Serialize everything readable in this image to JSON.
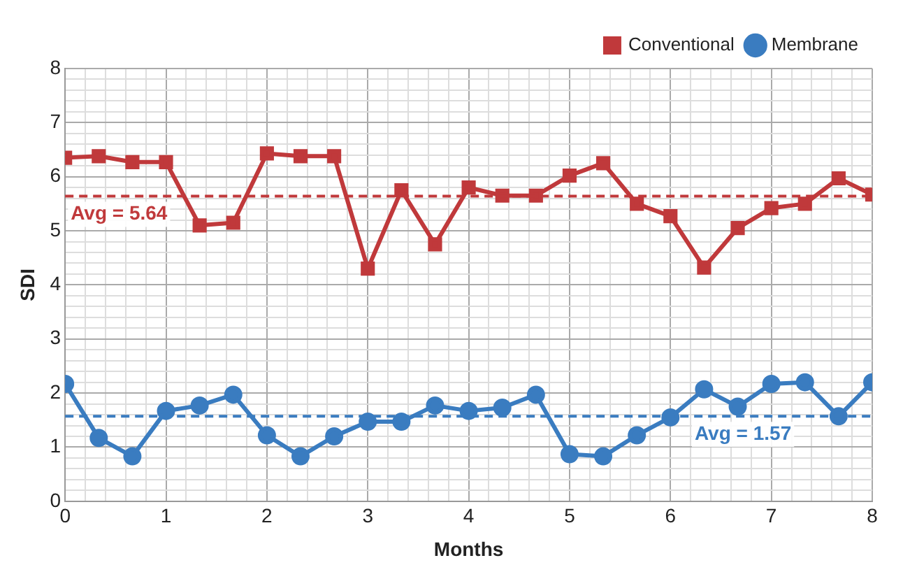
{
  "chart_data": {
    "type": "line",
    "xlabel": "Months",
    "ylabel": "SDI",
    "x": [
      0,
      0.3333,
      0.6667,
      1,
      1.3333,
      1.6667,
      2,
      2.3333,
      2.6667,
      3,
      3.3333,
      3.6667,
      4,
      4.3333,
      4.6667,
      5,
      5.3333,
      5.6667,
      6,
      6.3333,
      6.6667,
      7,
      7.3333,
      7.6667,
      8
    ],
    "series": [
      {
        "name": "Conventional",
        "color": "#c0393b",
        "marker": "square",
        "values": [
          6.35,
          6.38,
          6.27,
          6.27,
          5.1,
          5.15,
          6.43,
          6.38,
          6.38,
          4.3,
          5.75,
          4.75,
          5.8,
          5.65,
          5.65,
          6.02,
          6.25,
          5.5,
          5.27,
          4.32,
          5.05,
          5.42,
          5.5,
          5.97,
          5.67
        ]
      },
      {
        "name": "Membrane",
        "color": "#3a7cc0",
        "marker": "circle",
        "values": [
          2.17,
          1.17,
          0.83,
          1.67,
          1.77,
          1.97,
          1.22,
          0.83,
          1.2,
          1.47,
          1.47,
          1.77,
          1.67,
          1.73,
          1.97,
          0.87,
          0.83,
          1.22,
          1.55,
          2.07,
          1.75,
          2.17,
          2.2,
          1.57,
          2.2
        ]
      }
    ],
    "xlim": [
      0,
      8
    ],
    "xticks": [
      0,
      {
        "value": 0.2,
        "label": null
      },
      {
        "value": 0.4,
        "label": null
      },
      {
        "value": 0.6,
        "label": null
      },
      {
        "value": 0.8,
        "label": null
      },
      1,
      {
        "value": 1.2,
        "label": null
      },
      {
        "value": 1.4,
        "label": null
      },
      {
        "value": 1.6,
        "label": null
      },
      {
        "value": 1.8,
        "label": null
      },
      2,
      {
        "value": 2.2,
        "label": null
      },
      {
        "value": 2.4,
        "label": null
      },
      {
        "value": 2.6,
        "label": null
      },
      {
        "value": 2.8,
        "label": null
      },
      3,
      {
        "value": 3.2,
        "label": null
      },
      {
        "value": 3.4,
        "label": null
      },
      {
        "value": 3.6,
        "label": null
      },
      {
        "value": 3.8,
        "label": null
      },
      4,
      {
        "value": 4.2,
        "label": null
      },
      {
        "value": 4.4,
        "label": null
      },
      {
        "value": 4.6,
        "label": null
      },
      {
        "value": 4.8,
        "label": null
      },
      5,
      {
        "value": 5.2,
        "label": null
      },
      {
        "value": 5.4,
        "label": null
      },
      {
        "value": 5.6,
        "label": null
      },
      {
        "value": 5.8,
        "label": null
      },
      6,
      {
        "value": 6.2,
        "label": null
      },
      {
        "value": 6.4,
        "label": null
      },
      {
        "value": 6.6,
        "label": null
      },
      {
        "value": 6.8,
        "label": null
      },
      7,
      {
        "value": 7.2,
        "label": null
      },
      {
        "value": 7.4,
        "label": null
      },
      {
        "value": 7.6,
        "label": null
      },
      {
        "value": 7.8,
        "label": null
      },
      8
    ],
    "ylim": [
      0,
      8
    ],
    "yticks": [
      0,
      {
        "value": 0.2,
        "label": null
      },
      {
        "value": 0.4,
        "label": null
      },
      {
        "value": 0.6,
        "label": null
      },
      {
        "value": 0.8,
        "label": null
      },
      1,
      {
        "value": 1.2,
        "label": null
      },
      {
        "value": 1.4,
        "label": null
      },
      {
        "value": 1.6,
        "label": null
      },
      {
        "value": 1.8,
        "label": null
      },
      2,
      {
        "value": 2.2,
        "label": null
      },
      {
        "value": 2.4,
        "label": null
      },
      {
        "value": 2.6,
        "label": null
      },
      {
        "value": 2.8,
        "label": null
      },
      3,
      {
        "value": 3.2,
        "label": null
      },
      {
        "value": 3.4,
        "label": null
      },
      {
        "value": 3.6,
        "label": null
      },
      {
        "value": 3.8,
        "label": null
      },
      4,
      {
        "value": 4.2,
        "label": null
      },
      {
        "value": 4.4,
        "label": null
      },
      {
        "value": 4.6,
        "label": null
      },
      {
        "value": 4.8,
        "label": null
      },
      5,
      {
        "value": 5.2,
        "label": null
      },
      {
        "value": 5.4,
        "label": null
      },
      {
        "value": 5.6,
        "label": null
      },
      {
        "value": 5.8,
        "label": null
      },
      6,
      {
        "value": 6.2,
        "label": null
      },
      {
        "value": 6.4,
        "label": null
      },
      {
        "value": 6.6,
        "label": null
      },
      {
        "value": 6.8,
        "label": null
      },
      7,
      {
        "value": 7.2,
        "label": null
      },
      {
        "value": 7.4,
        "label": null
      },
      {
        "value": 7.6,
        "label": null
      },
      {
        "value": 7.8,
        "label": null
      },
      8
    ],
    "ref_lines": [
      {
        "axis": "y",
        "value": 5.64,
        "label": "Avg = 5.64",
        "color": "#c0393b",
        "line_style": "dashed"
      },
      {
        "axis": "y",
        "value": 1.57,
        "label": "Avg = 1.57",
        "color": "#3a7cc0",
        "line_style": "dashed"
      }
    ],
    "grid": true,
    "legend": "top right",
    "line_style": "solid"
  }
}
